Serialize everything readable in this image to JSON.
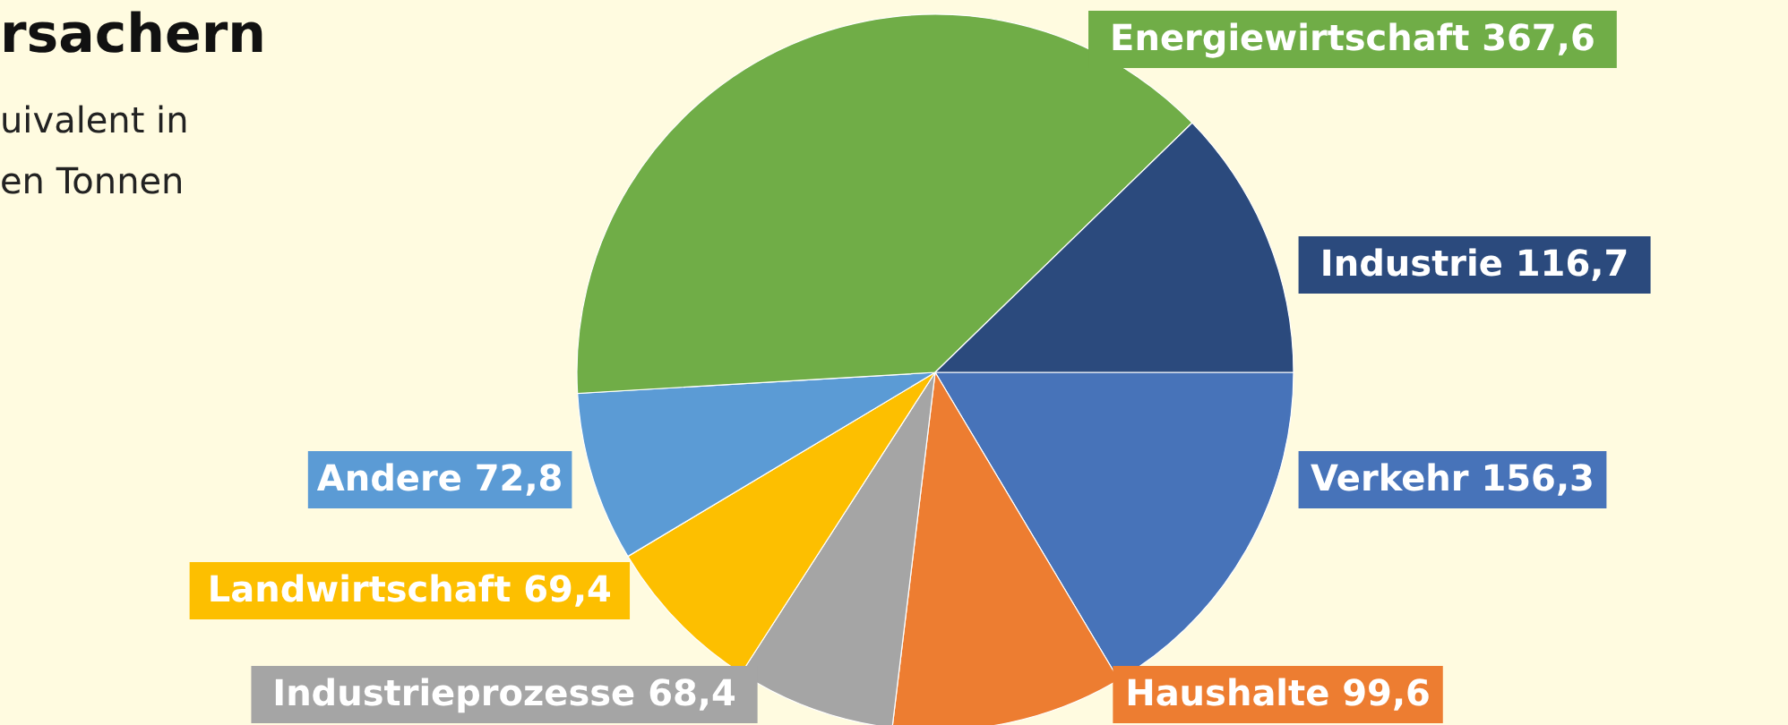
{
  "chart_data": {
    "type": "pie",
    "title": "rsachern",
    "subtitle": "uivalent in\nen Tonnen",
    "categories": [
      "Verkehr",
      "Haushalte",
      "Industrieprozesse",
      "Landwirtschaft",
      "Andere",
      "Energiewirtschaft",
      "Industrie"
    ],
    "values": [
      156.3,
      99.6,
      68.4,
      69.4,
      72.8,
      367.6,
      116.7
    ],
    "value_labels": [
      "156,3",
      "99,6",
      "68,4",
      "69,4",
      "72,8",
      "367,6",
      "116,7"
    ],
    "colors": [
      "#4773b9",
      "#ed7d31",
      "#a5a5a5",
      "#fdbf00",
      "#5b9bd5",
      "#70ad47",
      "#2b4a7d"
    ]
  }
}
